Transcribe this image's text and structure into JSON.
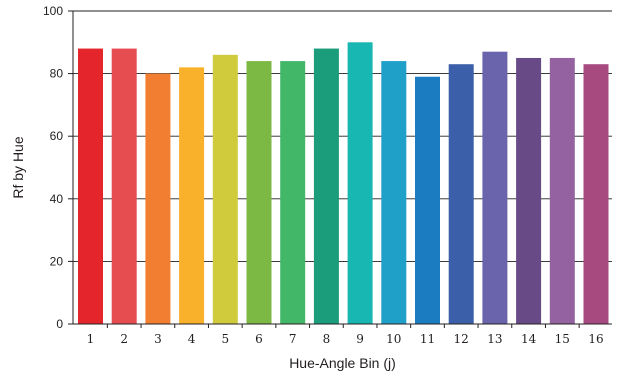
{
  "chart_data": {
    "type": "bar",
    "xlabel": "Hue-Angle Bin (j)",
    "ylabel": "Rf by Hue",
    "ylim": [
      0,
      100
    ],
    "yticks": [
      "0",
      "20",
      "40",
      "60",
      "80",
      "100"
    ],
    "grid": true,
    "categories": [
      "1",
      "2",
      "3",
      "4",
      "5",
      "6",
      "7",
      "8",
      "9",
      "10",
      "11",
      "12",
      "13",
      "14",
      "15",
      "16"
    ],
    "values": [
      88,
      88,
      80,
      82,
      86,
      84,
      84,
      88,
      90,
      84,
      79,
      83,
      87,
      85,
      85,
      83
    ],
    "colors": [
      "#e4252c",
      "#e54d50",
      "#f27f31",
      "#f9b12b",
      "#d0cb3d",
      "#7cb944",
      "#43b768",
      "#1b9c7b",
      "#18b7b2",
      "#1fa0c9",
      "#1c7cc1",
      "#3b5fa8",
      "#6a64ad",
      "#684a87",
      "#9562a1",
      "#a64a7f"
    ]
  }
}
